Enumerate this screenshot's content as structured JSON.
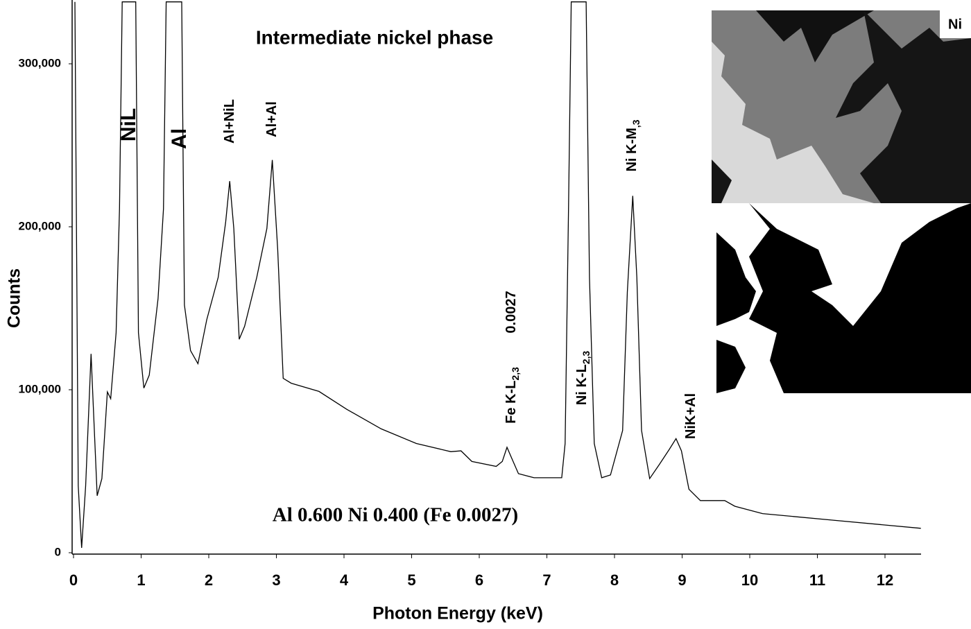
{
  "chart_data": {
    "type": "line",
    "title": "Intermediate nickel phase",
    "xlabel": "Photon Energy (keV)",
    "ylabel": "Counts",
    "formula": "Al 0.600 Ni 0.400 (Fe 0.0027)",
    "inset_label": "Ni",
    "annotations": [
      {
        "text": "NiL"
      },
      {
        "text": "Al"
      },
      {
        "text": "Al+NiL"
      },
      {
        "text": "Al+Al"
      },
      {
        "text": "Fe K-L",
        "sub": "2,3"
      },
      {
        "text": "0.0027"
      },
      {
        "text": "Ni K-L",
        "sub": "2,3"
      },
      {
        "text": "Ni K-M",
        "sub": ",3"
      },
      {
        "text": "NiK+Al"
      }
    ],
    "color": "#000000",
    "x": [
      0.02,
      0.07,
      0.12,
      0.18,
      0.26,
      0.29,
      0.35,
      0.42,
      0.5,
      0.55,
      0.63,
      0.68,
      0.72,
      0.92,
      0.96,
      1.04,
      1.12,
      1.25,
      1.33,
      1.37,
      1.6,
      1.64,
      1.73,
      1.84,
      1.97,
      2.14,
      2.25,
      2.31,
      2.37,
      2.45,
      2.53,
      2.71,
      2.86,
      2.94,
      3.02,
      3.1,
      3.22,
      3.63,
      4.04,
      4.55,
      5.07,
      5.58,
      5.73,
      5.89,
      6.25,
      6.34,
      6.41,
      6.48,
      6.58,
      6.81,
      7.22,
      7.27,
      7.32,
      7.36,
      7.58,
      7.63,
      7.7,
      7.81,
      7.94,
      8.12,
      8.19,
      8.27,
      8.33,
      8.4,
      8.52,
      8.66,
      8.81,
      8.91,
      8.99,
      9.1,
      9.27,
      9.63,
      9.78,
      10.19,
      11.22,
      12.53
    ],
    "values": [
      338000,
      41000,
      3000,
      41000,
      122000,
      92000,
      35000,
      45500,
      98700,
      94500,
      135000,
      211000,
      338000,
      338000,
      135000,
      101000,
      109000,
      156000,
      211000,
      338000,
      338000,
      152000,
      124000,
      116000,
      143000,
      169000,
      203000,
      228000,
      199000,
      131000,
      139000,
      169000,
      199000,
      241000,
      186000,
      107000,
      104000,
      99000,
      88000,
      76000,
      67000,
      62000,
      62500,
      56000,
      53000,
      56000,
      64700,
      58000,
      48500,
      46000,
      46000,
      67000,
      211000,
      338000,
      338000,
      169000,
      67000,
      46000,
      47700,
      75000,
      160000,
      219000,
      169000,
      75000,
      45500,
      54000,
      63400,
      70000,
      62500,
      39000,
      32000,
      32000,
      28500,
      24000,
      20000,
      15000
    ],
    "xlim": [
      0,
      12.53
    ],
    "ylim": [
      0,
      338000
    ],
    "xticks": [
      0,
      1,
      2,
      3,
      4,
      5,
      6,
      7,
      8,
      9,
      10,
      11,
      12
    ],
    "yticks": [
      0,
      {
        "value": 100000,
        "label": "100,000"
      },
      {
        "value": 200000,
        "label": "200,000"
      },
      {
        "value": 300000,
        "label": "300,000"
      }
    ],
    "grid": false
  }
}
